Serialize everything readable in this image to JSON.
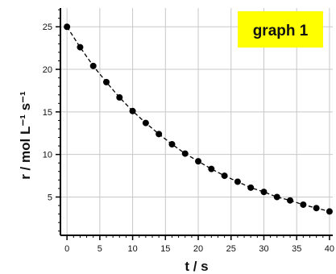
{
  "colors": {
    "label_background": "#FFFF00",
    "grid": "#c8c8c8",
    "axis": "#000000",
    "marker": "#000000",
    "line": "#000000"
  },
  "chart_data": {
    "type": "scatter",
    "label": "graph 1",
    "xlabel": "t / s",
    "ylabel": "r / mol L⁻¹ s⁻¹",
    "xlim": [
      -1,
      40.5
    ],
    "ylim": [
      0.5,
      27.2
    ],
    "xticks": [
      0,
      5,
      10,
      15,
      20,
      25,
      30,
      35,
      40
    ],
    "yticks": [
      5,
      10,
      15,
      20,
      25
    ],
    "grid": true,
    "line_style": "dashed",
    "marker": "filled-circle",
    "x": [
      0,
      2,
      4,
      6,
      8,
      10,
      12,
      14,
      16,
      18,
      20,
      22,
      24,
      26,
      28,
      30,
      32,
      34,
      36,
      38,
      40
    ],
    "y": [
      25.0,
      22.6,
      20.4,
      18.5,
      16.7,
      15.1,
      13.7,
      12.4,
      11.2,
      10.1,
      9.2,
      8.3,
      7.5,
      6.8,
      6.1,
      5.6,
      5.0,
      4.6,
      4.1,
      3.7,
      3.3
    ]
  }
}
